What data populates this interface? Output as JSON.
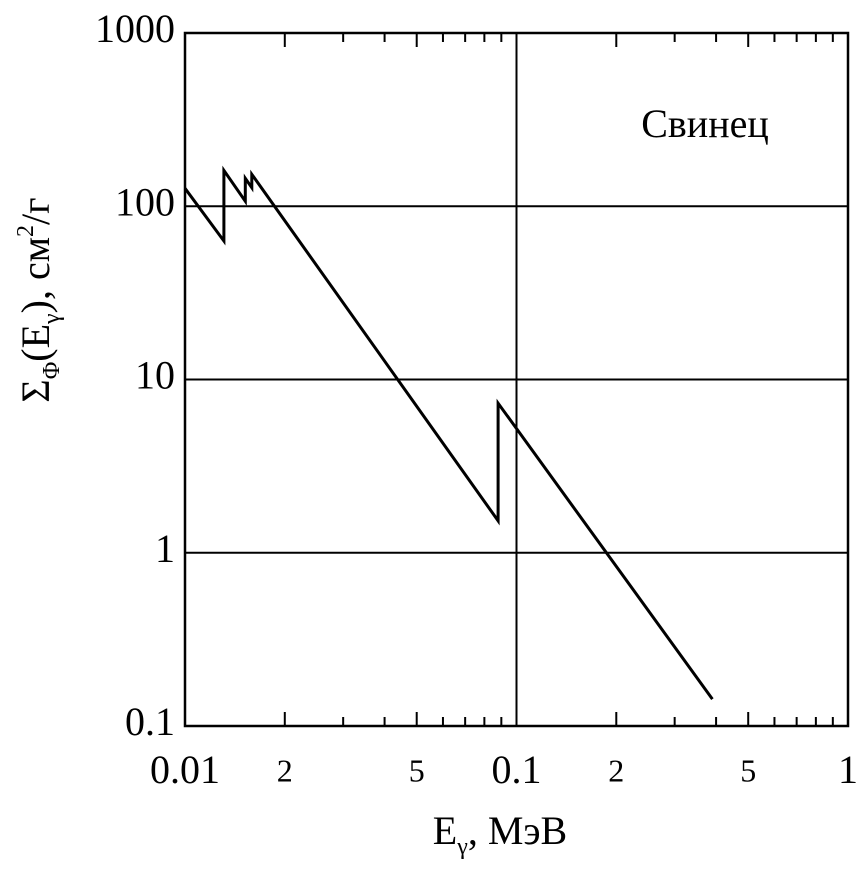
{
  "chart_data": {
    "type": "line",
    "xlabel_parts": [
      {
        "text": "E"
      },
      {
        "text": "γ",
        "sub": true
      },
      {
        "text": ", МэВ"
      }
    ],
    "ylabel_parts": [
      {
        "text": "Σ"
      },
      {
        "text": "Φ",
        "sub": true
      },
      {
        "text": "(E"
      },
      {
        "text": "γ",
        "sub": true
      },
      {
        "text": "),  см"
      },
      {
        "text": "2",
        "sup": true
      },
      {
        "text": "/г"
      }
    ],
    "annotation": "Свинец",
    "x": [
      0.01,
      0.0131,
      0.0131,
      0.0152,
      0.0152,
      0.0159,
      0.0159,
      0.088,
      0.088,
      0.39
    ],
    "series": [
      {
        "color": "#000000",
        "values": [
          127,
          63,
          161,
          107,
          145,
          128,
          153,
          1.53,
          7.3,
          0.143
        ]
      }
    ],
    "xscale": "log",
    "yscale": "log",
    "xlim": [
      0.01,
      1
    ],
    "ylim": [
      0.1,
      1000
    ],
    "xticks": [
      {
        "value": 0.01,
        "label": "0.01"
      },
      {
        "value": 0.02,
        "label": "2"
      },
      {
        "value": 0.05,
        "label": "5"
      },
      0.1,
      {
        "value": 0.2,
        "label": "2"
      },
      {
        "value": 0.5,
        "label": "5"
      },
      1
    ],
    "xgrid": [
      0.1
    ],
    "xminorticks": [
      0.03,
      0.04,
      0.06,
      0.07,
      0.08,
      0.09,
      0.3,
      0.4,
      0.6,
      0.7,
      0.8,
      0.9
    ],
    "yticks": [
      0.1,
      1,
      10,
      100,
      1000
    ],
    "grid": true
  }
}
